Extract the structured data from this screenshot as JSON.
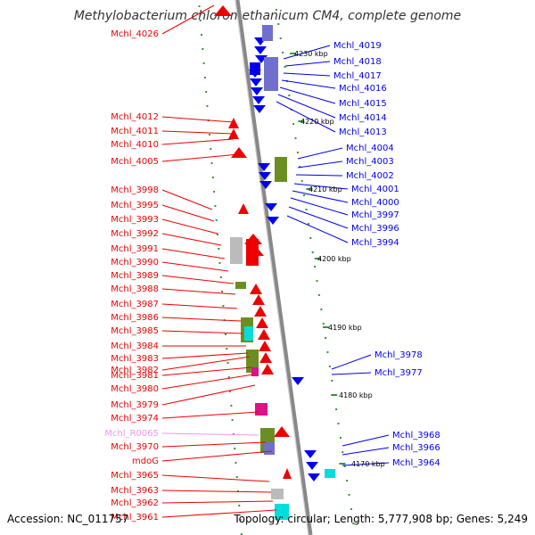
{
  "title": "Methylobacterium chloromethanicum CM4, complete genome",
  "footer": {
    "accession": "Accession: NC_011757",
    "topology": "Topology: circular; Length: 5,777,908 bp; Genes: 5,249"
  },
  "colors": {
    "forward": "#ee0000",
    "reverse": "#0000ee",
    "rna": "#ee99ee",
    "cog_green": "#6b8e23",
    "cog_purple": "#7070cc",
    "cog_cyan": "#00dddd",
    "cog_magenta": "#dd1188",
    "cog_grey": "#bbbbbb",
    "backbone": "#888888",
    "tick": "#339933"
  },
  "kbp_labels": [
    "4230 kbp",
    "4220 kbp",
    "4210 kbp",
    "4200 kbp",
    "4190 kbp",
    "4180 kbp",
    "4170 kbp"
  ],
  "left_labels": [
    {
      "text": "Mchl_4026",
      "kind": "forward"
    },
    {
      "text": "Mchl_4012",
      "kind": "forward"
    },
    {
      "text": "Mchl_4011",
      "kind": "forward"
    },
    {
      "text": "Mchl_4010",
      "kind": "forward"
    },
    {
      "text": "Mchl_4005",
      "kind": "forward"
    },
    {
      "text": "Mchl_3998",
      "kind": "forward"
    },
    {
      "text": "Mchl_3995",
      "kind": "forward"
    },
    {
      "text": "Mchl_3993",
      "kind": "forward"
    },
    {
      "text": "Mchl_3992",
      "kind": "forward"
    },
    {
      "text": "Mchl_3991",
      "kind": "forward"
    },
    {
      "text": "Mchl_3990",
      "kind": "forward"
    },
    {
      "text": "Mchl_3989",
      "kind": "forward"
    },
    {
      "text": "Mchl_3988",
      "kind": "forward"
    },
    {
      "text": "Mchl_3987",
      "kind": "forward"
    },
    {
      "text": "Mchl_3986",
      "kind": "forward"
    },
    {
      "text": "Mchl_3985",
      "kind": "forward"
    },
    {
      "text": "Mchl_3984",
      "kind": "forward"
    },
    {
      "text": "Mchl_3983",
      "kind": "forward"
    },
    {
      "text": "Mchl_3982",
      "kind": "forward"
    },
    {
      "text": "Mchl_3981",
      "kind": "forward"
    },
    {
      "text": "Mchl_3980",
      "kind": "forward"
    },
    {
      "text": "Mchl_3979",
      "kind": "forward"
    },
    {
      "text": "Mchl_3974",
      "kind": "forward"
    },
    {
      "text": "Mchl_R0065",
      "kind": "rna"
    },
    {
      "text": "Mchl_3970",
      "kind": "forward"
    },
    {
      "text": "mdoG",
      "kind": "forward"
    },
    {
      "text": "Mchl_3965",
      "kind": "forward"
    },
    {
      "text": "Mchl_3963",
      "kind": "forward"
    },
    {
      "text": "Mchl_3962",
      "kind": "forward"
    },
    {
      "text": "Mchl_3961",
      "kind": "forward"
    }
  ],
  "right_labels": [
    {
      "text": "Mchl_4019",
      "kind": "reverse"
    },
    {
      "text": "Mchl_4018",
      "kind": "reverse"
    },
    {
      "text": "Mchl_4017",
      "kind": "reverse"
    },
    {
      "text": "Mchl_4016",
      "kind": "reverse"
    },
    {
      "text": "Mchl_4015",
      "kind": "reverse"
    },
    {
      "text": "Mchl_4014",
      "kind": "reverse"
    },
    {
      "text": "Mchl_4013",
      "kind": "reverse"
    },
    {
      "text": "Mchl_4004",
      "kind": "reverse"
    },
    {
      "text": "Mchl_4003",
      "kind": "reverse"
    },
    {
      "text": "Mchl_4002",
      "kind": "reverse"
    },
    {
      "text": "Mchl_4001",
      "kind": "reverse"
    },
    {
      "text": "Mchl_4000",
      "kind": "reverse"
    },
    {
      "text": "Mchl_3997",
      "kind": "reverse"
    },
    {
      "text": "Mchl_3996",
      "kind": "reverse"
    },
    {
      "text": "Mchl_3994",
      "kind": "reverse"
    },
    {
      "text": "Mchl_3978",
      "kind": "reverse"
    },
    {
      "text": "Mchl_3977",
      "kind": "reverse"
    },
    {
      "text": "Mchl_3968",
      "kind": "reverse"
    },
    {
      "text": "Mchl_3966",
      "kind": "reverse"
    },
    {
      "text": "Mchl_3964",
      "kind": "reverse"
    }
  ]
}
